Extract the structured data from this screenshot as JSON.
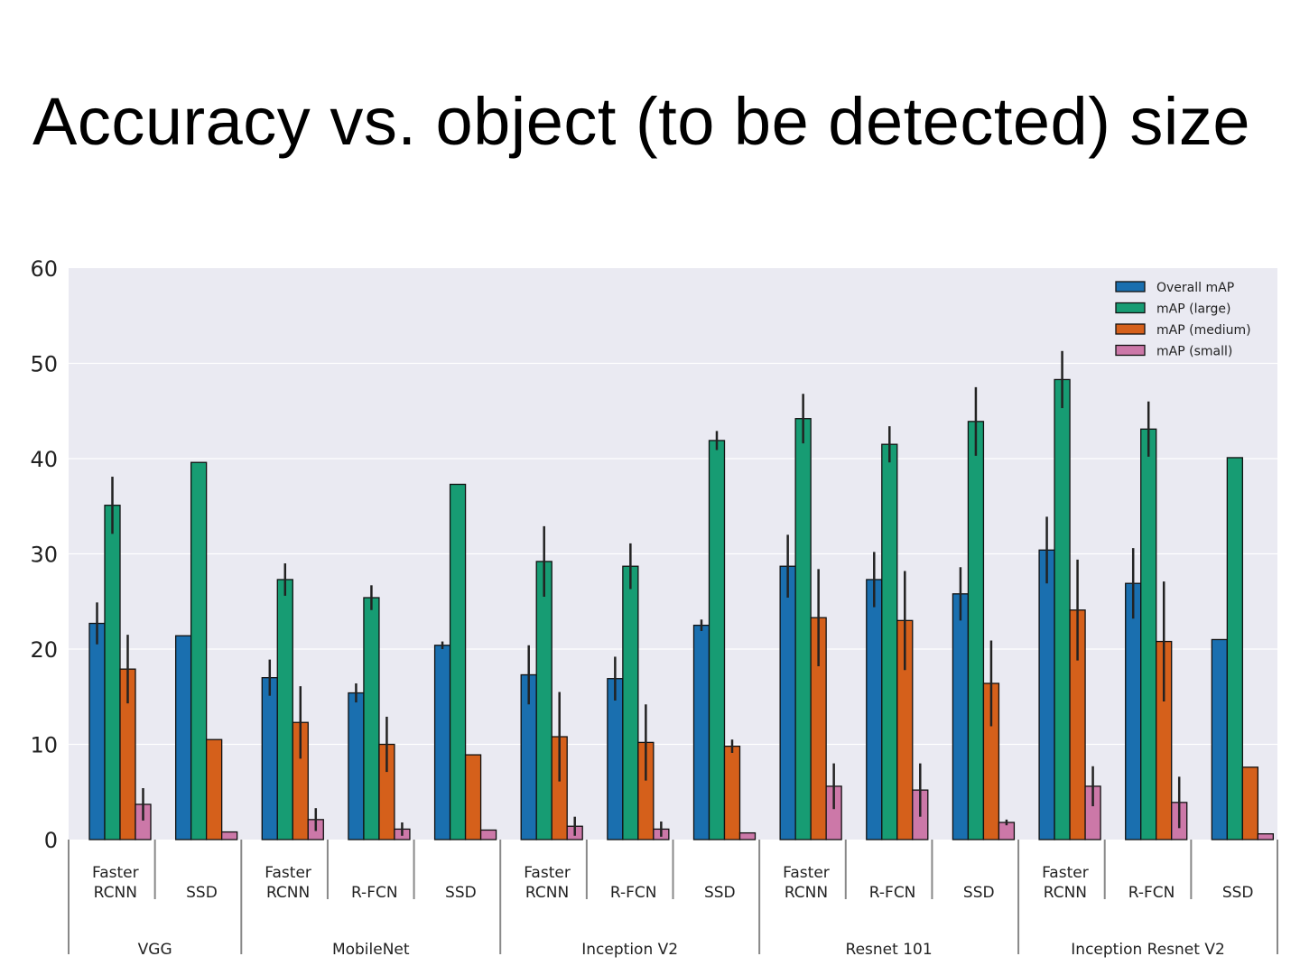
{
  "title": "Accuracy vs. object (to be detected) size",
  "chart_data": {
    "type": "bar",
    "ylim": [
      0,
      60
    ],
    "yticks": [
      0,
      10,
      20,
      30,
      40,
      50,
      60
    ],
    "grid": true,
    "legend_position": "top-right",
    "groups": [
      {
        "backbone": "VGG",
        "meta": [
          "Faster RCNN",
          "SSD"
        ]
      },
      {
        "backbone": "MobileNet",
        "meta": [
          "Faster RCNN",
          "R-FCN",
          "SSD"
        ]
      },
      {
        "backbone": "Inception V2",
        "meta": [
          "Faster RCNN",
          "R-FCN",
          "SSD"
        ]
      },
      {
        "backbone": "Resnet 101",
        "meta": [
          "Faster RCNN",
          "R-FCN",
          "SSD"
        ]
      },
      {
        "backbone": "Inception Resnet V2",
        "meta": [
          "Faster RCNN",
          "R-FCN",
          "SSD"
        ]
      }
    ],
    "series": [
      {
        "name": "Overall mAP",
        "color": "#1a6faf",
        "values": [
          22.7,
          21.4,
          17.0,
          15.4,
          20.4,
          17.3,
          16.9,
          22.5,
          28.7,
          27.3,
          25.8,
          30.4,
          26.9,
          21.0
        ],
        "errors": [
          2.2,
          0,
          1.9,
          1.0,
          0.4,
          3.1,
          2.3,
          0.6,
          3.3,
          2.9,
          2.8,
          3.5,
          3.7,
          0
        ]
      },
      {
        "name": "mAP (large)",
        "color": "#179c73",
        "values": [
          35.1,
          39.6,
          27.3,
          25.4,
          37.3,
          29.2,
          28.7,
          41.9,
          44.2,
          41.5,
          43.9,
          48.3,
          43.1,
          40.1
        ],
        "errors": [
          3.0,
          0,
          1.7,
          1.3,
          0,
          3.7,
          2.4,
          1.0,
          2.6,
          1.9,
          3.6,
          3.0,
          2.9,
          0
        ]
      },
      {
        "name": "mAP (medium)",
        "color": "#d5601b",
        "values": [
          17.9,
          10.5,
          12.3,
          10.0,
          8.9,
          10.8,
          10.2,
          9.8,
          23.3,
          23.0,
          16.4,
          24.1,
          20.8,
          7.6
        ],
        "errors": [
          3.6,
          0,
          3.8,
          2.9,
          0,
          4.7,
          4.0,
          0.7,
          5.1,
          5.2,
          4.5,
          5.3,
          6.3,
          0
        ]
      },
      {
        "name": "mAP (small)",
        "color": "#cc78a8",
        "values": [
          3.7,
          0.8,
          2.1,
          1.1,
          1.0,
          1.4,
          1.1,
          0.7,
          5.6,
          5.2,
          1.8,
          5.6,
          3.9,
          0.6
        ],
        "errors": [
          1.7,
          0,
          1.2,
          0.7,
          0,
          1.0,
          0.8,
          0,
          2.4,
          2.8,
          0.3,
          2.1,
          2.7,
          0
        ]
      }
    ]
  }
}
